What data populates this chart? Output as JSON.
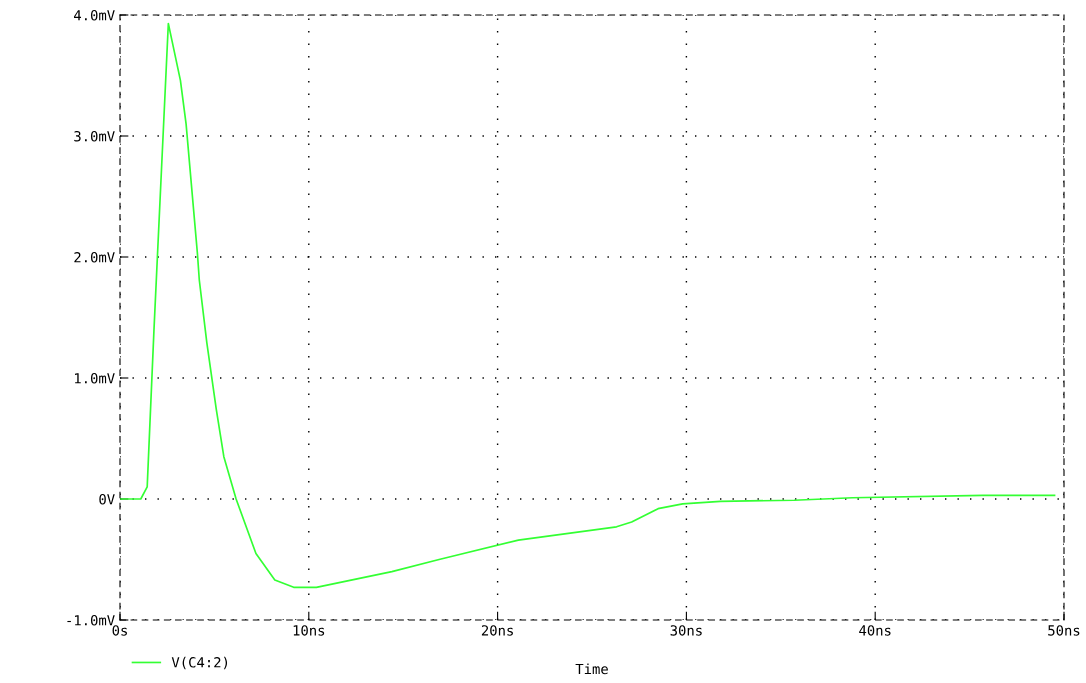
{
  "chart_data": {
    "type": "line",
    "xlabel": "Time",
    "xlim": [
      0,
      50
    ],
    "xticks": [
      {
        "value": 0,
        "label": "0s"
      },
      {
        "value": 10,
        "label": "10ns"
      },
      {
        "value": 20,
        "label": "20ns"
      },
      {
        "value": 30,
        "label": "30ns"
      },
      {
        "value": 40,
        "label": "40ns"
      },
      {
        "value": 50,
        "label": "50ns"
      }
    ],
    "ylim": [
      -1,
      4
    ],
    "yticks": [
      {
        "value": -1,
        "label": "-1.0mV"
      },
      {
        "value": 0,
        "label": "0V"
      },
      {
        "value": 1,
        "label": "1.0mV"
      },
      {
        "value": 2,
        "label": "2.0mV"
      },
      {
        "value": 3,
        "label": "3.0mV"
      },
      {
        "value": 4,
        "label": "4.0mV"
      }
    ],
    "grid": true,
    "legend": "bottom left",
    "line_style": "solid",
    "series": [
      {
        "name": "V(C4:2)",
        "color": "#33ff33",
        "x": [
          0,
          1.1,
          1.44,
          1.8,
          2.56,
          2.75,
          3.2,
          3.5,
          4.1,
          4.2,
          4.6,
          5.1,
          5.5,
          6.15,
          7.2,
          8.2,
          9.2,
          10.4,
          14.4,
          16.9,
          21.1,
          26.3,
          27.1,
          28.5,
          29.8,
          31.8,
          35.7,
          38.8,
          45.7,
          49.5
        ],
        "values": [
          0,
          0,
          0.1,
          1.4,
          3.93,
          3.79,
          3.46,
          3.1,
          2.03,
          1.81,
          1.29,
          0.74,
          0.35,
          0,
          -0.45,
          -0.67,
          -0.73,
          -0.73,
          -0.6,
          -0.5,
          -0.34,
          -0.23,
          -0.19,
          -0.08,
          -0.04,
          -0.02,
          -0.01,
          0.01,
          0.03,
          0.03
        ]
      }
    ]
  }
}
